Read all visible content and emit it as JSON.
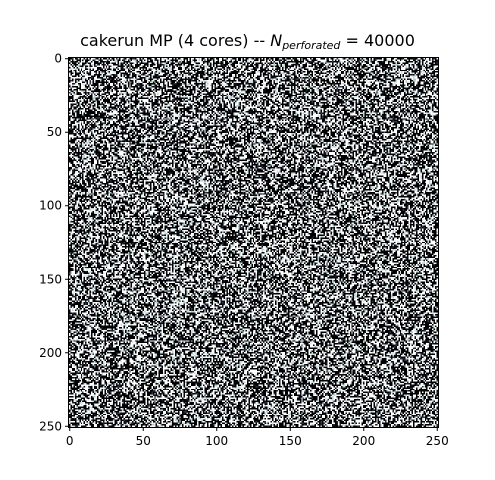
{
  "chart_data": {
    "type": "heatmap",
    "title": {
      "prefix": "cakerun MP (4 cores) -- ",
      "symbol": "N",
      "subscript": "perforated",
      "suffix": " = 40000"
    },
    "rows": 251,
    "cols": 251,
    "value_range": [
      0,
      1
    ],
    "colormap": "bone",
    "colormap_colors": [
      "#000000",
      "#515171",
      "#a6c0c0",
      "#ffffff"
    ],
    "xlim": [
      0,
      250
    ],
    "ylim": [
      250,
      0
    ],
    "xticks": [
      0,
      50,
      100,
      150,
      200,
      250
    ],
    "yticks": [
      0,
      50,
      100,
      150,
      200,
      250
    ],
    "grid": false,
    "legend": "none",
    "pattern": "pseudo-random binary field"
  }
}
